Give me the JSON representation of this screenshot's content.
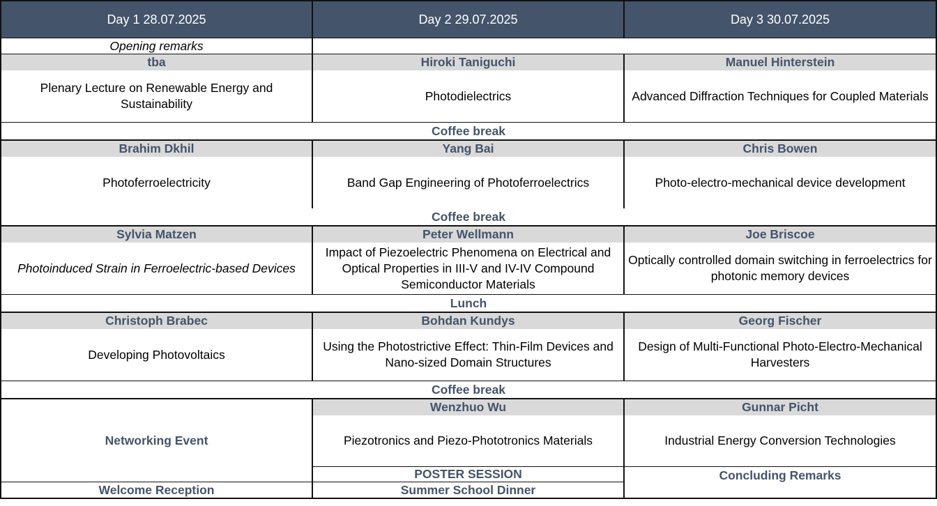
{
  "header": {
    "days": [
      "Day 1 28.07.2025",
      "Day 2 29.07.2025",
      "Day 3 30.07.2025"
    ]
  },
  "opening": "Opening remarks",
  "sessions": [
    [
      {
        "speaker": "tba",
        "title": "Plenary Lecture on Renewable Energy and Sustainability"
      },
      {
        "speaker": "Hiroki Taniguchi",
        "title": "Photodielectrics"
      },
      {
        "speaker": "Manuel Hinterstein",
        "title": "Advanced Diffraction Techniques for Coupled Materials"
      }
    ],
    [
      {
        "speaker": "Brahim Dkhil",
        "title": "Photoferroelectricity"
      },
      {
        "speaker": "Yang Bai",
        "title": "Band Gap Engineering of Photoferroelectrics"
      },
      {
        "speaker": "Chris Bowen",
        "title": "Photo-electro-mechanical device development"
      }
    ],
    [
      {
        "speaker": "Sylvia Matzen",
        "title": "Photoinduced Strain in Ferroelectric-based Devices"
      },
      {
        "speaker": "Peter Wellmann",
        "title": "Impact of Piezoelectric Phenomena on Electrical and Optical Properties in III-V and IV-IV Compound Semiconductor Materials"
      },
      {
        "speaker": "Joe Briscoe",
        "title": "Optically controlled domain switching in ferroelectrics for photonic memory devices"
      }
    ],
    [
      {
        "speaker": "Christoph Brabec",
        "title": "Developing Photovoltaics"
      },
      {
        "speaker": "Bohdan Kundys",
        "title": "Using the Photostrictive Effect: Thin-Film Devices and Nano-sized Domain Structures"
      },
      {
        "speaker": "Georg Fischer",
        "title": "Design of Multi-Functional Photo-Electro-Mechanical Harvesters"
      }
    ]
  ],
  "breaks": [
    "Coffee break",
    "Coffee break",
    "Lunch",
    "Coffee break"
  ],
  "final": {
    "day1_event": "Networking Event",
    "day1_evening": "Welcome Reception",
    "day2": {
      "speaker": "Wenzhuo Wu",
      "title": "Piezotronics and Piezo-Phototronics Materials"
    },
    "day2_poster": "POSTER SESSION",
    "day2_evening": "Summer School Dinner",
    "day3": {
      "speaker": "Gunnar Picht",
      "title": "Industrial Energy Conversion Technologies"
    },
    "day3_closing": "Concluding Remarks"
  }
}
